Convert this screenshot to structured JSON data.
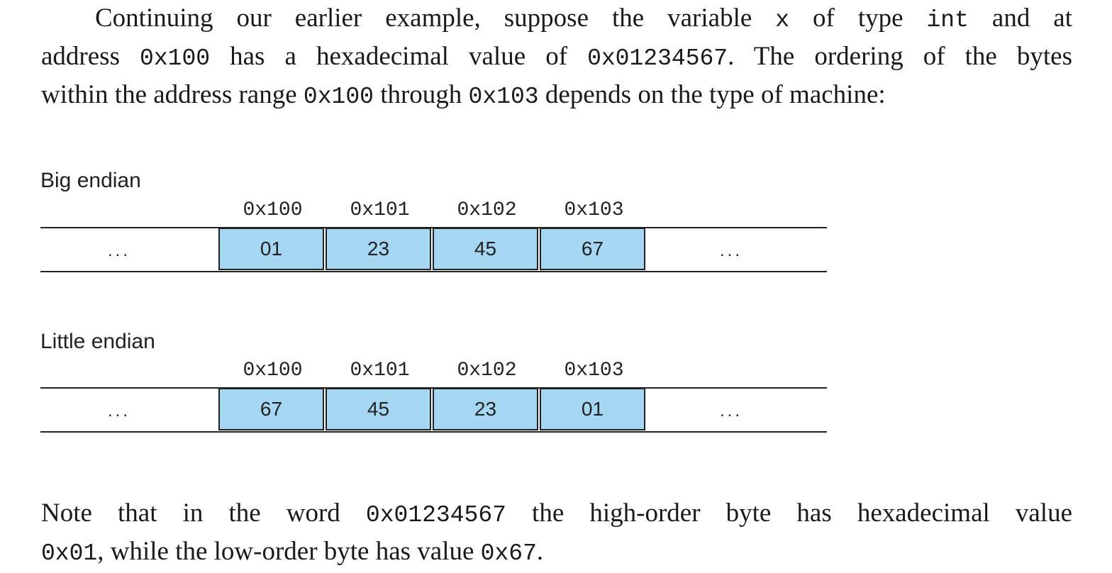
{
  "intro": {
    "line1": [
      "Continuing our earlier example, suppose the variable ",
      "x",
      " of type ",
      "int",
      " and at"
    ],
    "line2": [
      "address ",
      "0x100",
      " has a hexadecimal value of ",
      "0x01234567",
      ". The ordering of the bytes"
    ],
    "line3": [
      "within the address range ",
      "0x100",
      " through ",
      "0x103",
      " depends on the type of machine:"
    ]
  },
  "diagrams": [
    {
      "label": "Big endian",
      "addresses": [
        "0x100",
        "0x101",
        "0x102",
        "0x103"
      ],
      "bytes": [
        "01",
        "23",
        "45",
        "67"
      ],
      "ellipsis": "..."
    },
    {
      "label": "Little endian",
      "addresses": [
        "0x100",
        "0x101",
        "0x102",
        "0x103"
      ],
      "bytes": [
        "67",
        "45",
        "23",
        "01"
      ],
      "ellipsis": "..."
    }
  ],
  "note": {
    "line1": [
      "Note that in the word ",
      "0x01234567",
      " the high-order byte has hexadecimal value"
    ],
    "line2": [
      "0x01",
      ", while the low-order byte has value ",
      "0x67",
      "."
    ]
  },
  "colors": {
    "cell_fill": "#a5d6f2",
    "line": "#222222"
  }
}
